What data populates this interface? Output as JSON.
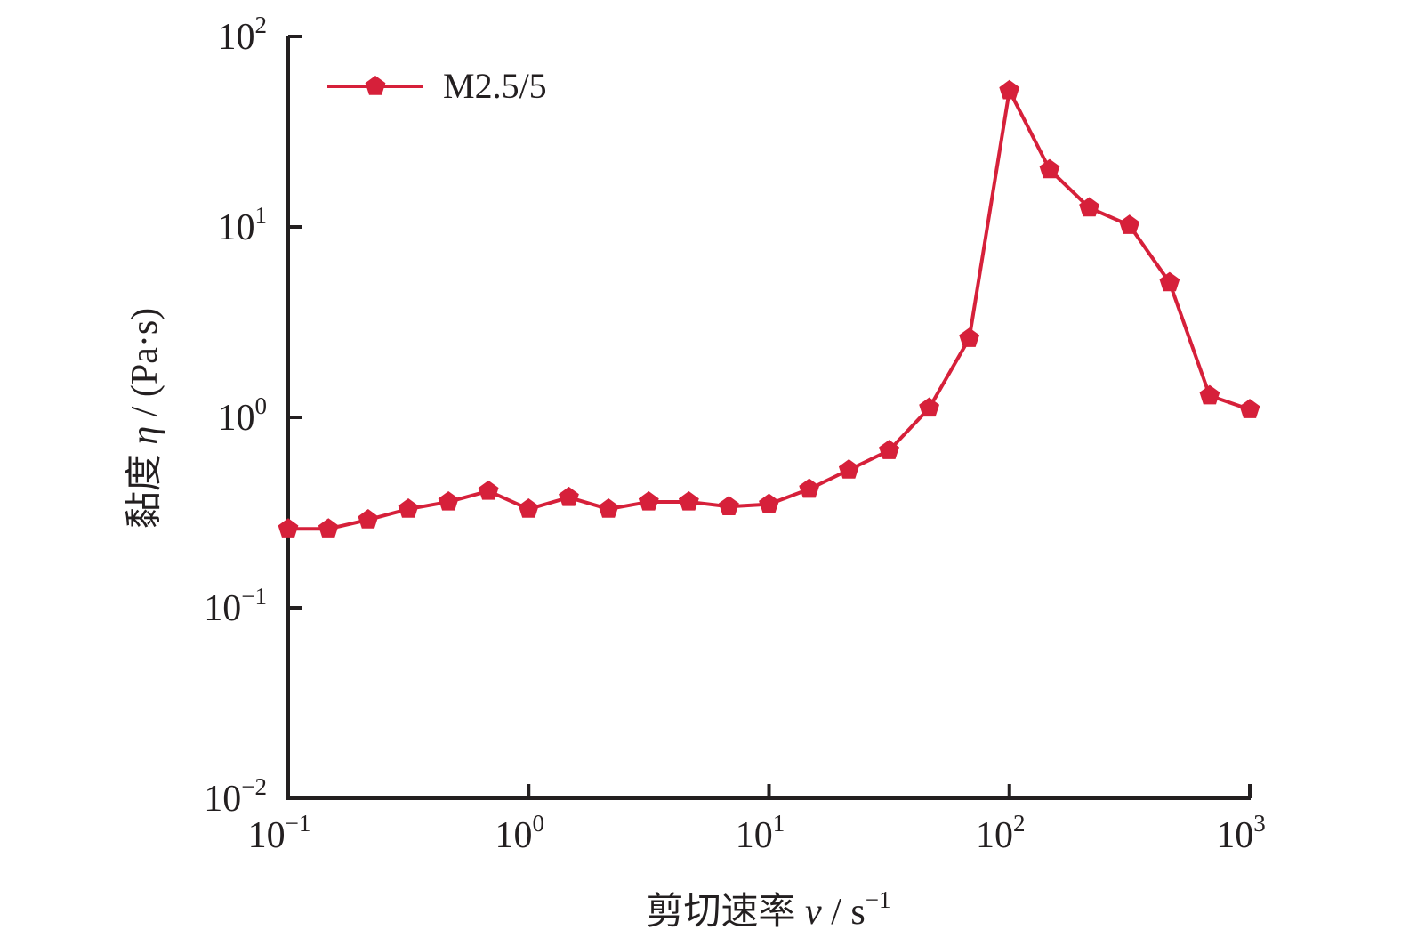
{
  "chart_data": {
    "type": "line",
    "x_scale": "log",
    "y_scale": "log",
    "xlim": [
      0.1,
      1000
    ],
    "ylim": [
      0.01,
      100
    ],
    "x_ticks": [
      {
        "base": "10",
        "exp": "−1"
      },
      {
        "base": "10",
        "exp": "0"
      },
      {
        "base": "10",
        "exp": "1"
      },
      {
        "base": "10",
        "exp": "2"
      },
      {
        "base": "10",
        "exp": "3"
      }
    ],
    "y_ticks": [
      {
        "base": "10",
        "exp": "−2"
      },
      {
        "base": "10",
        "exp": "−1"
      },
      {
        "base": "10",
        "exp": "0"
      },
      {
        "base": "10",
        "exp": "1"
      },
      {
        "base": "10",
        "exp": "2"
      }
    ],
    "xlabel": {
      "prefix": "剪切速率 ",
      "var": "v",
      "unit": " / s",
      "unit_exp": "−1"
    },
    "ylabel": {
      "prefix": "黏度 ",
      "var": "η",
      "unit": " / (Pa·s)"
    },
    "legend_position": "top-left",
    "grid": false,
    "series": [
      {
        "name": "M2.5/5",
        "color": "#d6203a",
        "marker": "pentagon",
        "x": [
          0.1,
          0.147,
          0.215,
          0.316,
          0.464,
          0.681,
          1.0,
          1.47,
          2.15,
          3.16,
          4.64,
          6.81,
          10.0,
          14.7,
          21.5,
          31.6,
          46.4,
          68.1,
          100,
          147,
          215,
          316,
          464,
          681,
          1000
        ],
        "y": [
          0.26,
          0.26,
          0.29,
          0.33,
          0.36,
          0.41,
          0.33,
          0.38,
          0.33,
          0.36,
          0.36,
          0.34,
          0.35,
          0.42,
          0.53,
          0.67,
          1.12,
          2.6,
          52,
          20,
          12.6,
          10.2,
          5.1,
          1.3,
          1.1
        ]
      }
    ]
  }
}
